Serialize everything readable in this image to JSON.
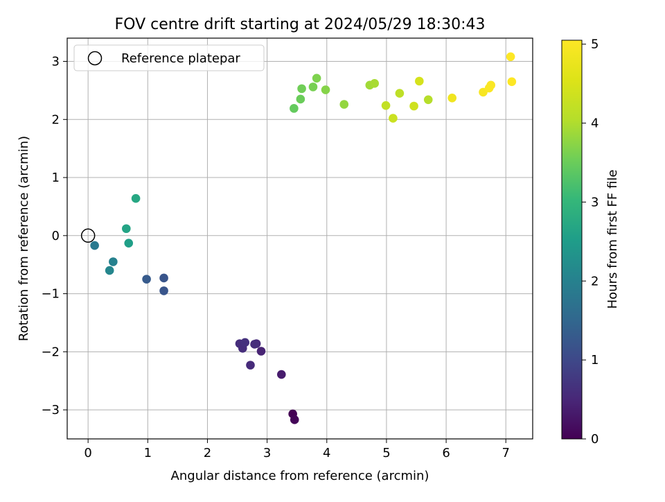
{
  "chart_data": {
    "type": "scatter",
    "title": "FOV centre drift starting at 2024/05/29 18:30:43",
    "xlabel": "Angular distance from reference (arcmin)",
    "ylabel": "Rotation from reference (arcmin)",
    "xlim": [
      -0.35,
      7.45
    ],
    "ylim": [
      -3.5,
      3.4
    ],
    "xticks": [
      0,
      1,
      2,
      3,
      4,
      5,
      6,
      7
    ],
    "xtick_labels": [
      "0",
      "1",
      "2",
      "3",
      "4",
      "5",
      "6",
      "7"
    ],
    "yticks": [
      -3,
      -2,
      -1,
      0,
      1,
      2,
      3
    ],
    "ytick_labels": [
      "−3",
      "−2",
      "−1",
      "0",
      "1",
      "2",
      "3"
    ],
    "grid": true,
    "legend": {
      "position": "top-left",
      "entries": [
        "Reference platepar"
      ]
    },
    "reference_point": {
      "x": 0,
      "y": 0,
      "label": "Reference platepar"
    },
    "colorbar": {
      "label": "Hours from first FF file",
      "range": [
        0,
        5.05
      ],
      "ticks": [
        0,
        1,
        2,
        3,
        4,
        5
      ],
      "tick_labels": [
        "0",
        "1",
        "2",
        "3",
        "4",
        "5"
      ],
      "colormap": "viridis"
    },
    "points": [
      {
        "x": 3.43,
        "y": -3.07,
        "hours": 0.0
      },
      {
        "x": 3.46,
        "y": -3.17,
        "hours": 0.05
      },
      {
        "x": 3.24,
        "y": -2.39,
        "hours": 0.35
      },
      {
        "x": 2.9,
        "y": -1.99,
        "hours": 0.45
      },
      {
        "x": 2.72,
        "y": -2.23,
        "hours": 0.55
      },
      {
        "x": 2.82,
        "y": -1.86,
        "hours": 0.55
      },
      {
        "x": 2.79,
        "y": -1.87,
        "hours": 0.6
      },
      {
        "x": 2.54,
        "y": -1.86,
        "hours": 0.6
      },
      {
        "x": 2.59,
        "y": -1.94,
        "hours": 0.6
      },
      {
        "x": 2.63,
        "y": -1.84,
        "hours": 0.65
      },
      {
        "x": 1.27,
        "y": -0.95,
        "hours": 1.2
      },
      {
        "x": 1.27,
        "y": -0.73,
        "hours": 1.2
      },
      {
        "x": 0.98,
        "y": -0.75,
        "hours": 1.3
      },
      {
        "x": 0.11,
        "y": -0.17,
        "hours": 1.85
      },
      {
        "x": 0.42,
        "y": -0.45,
        "hours": 2.0
      },
      {
        "x": 0.36,
        "y": -0.6,
        "hours": 2.1
      },
      {
        "x": 0.68,
        "y": -0.13,
        "hours": 2.55
      },
      {
        "x": 0.64,
        "y": 0.12,
        "hours": 2.65
      },
      {
        "x": 0.8,
        "y": 0.64,
        "hours": 2.7
      },
      {
        "x": 3.45,
        "y": 2.19,
        "hours": 3.45
      },
      {
        "x": 3.56,
        "y": 2.35,
        "hours": 3.5
      },
      {
        "x": 3.58,
        "y": 2.53,
        "hours": 3.55
      },
      {
        "x": 3.77,
        "y": 2.56,
        "hours": 3.6
      },
      {
        "x": 3.83,
        "y": 2.71,
        "hours": 3.65
      },
      {
        "x": 3.98,
        "y": 2.51,
        "hours": 3.7
      },
      {
        "x": 4.29,
        "y": 2.26,
        "hours": 3.8
      },
      {
        "x": 4.72,
        "y": 2.59,
        "hours": 3.9
      },
      {
        "x": 4.8,
        "y": 2.62,
        "hours": 3.95
      },
      {
        "x": 5.7,
        "y": 2.34,
        "hours": 4.05
      },
      {
        "x": 5.22,
        "y": 2.45,
        "hours": 4.15
      },
      {
        "x": 4.99,
        "y": 2.24,
        "hours": 4.2
      },
      {
        "x": 5.11,
        "y": 2.02,
        "hours": 4.3
      },
      {
        "x": 5.46,
        "y": 2.23,
        "hours": 4.35
      },
      {
        "x": 5.55,
        "y": 2.66,
        "hours": 4.45
      },
      {
        "x": 6.1,
        "y": 2.37,
        "hours": 4.85
      },
      {
        "x": 6.62,
        "y": 2.47,
        "hours": 4.95
      },
      {
        "x": 6.72,
        "y": 2.54,
        "hours": 5.0
      },
      {
        "x": 6.75,
        "y": 2.59,
        "hours": 5.0
      },
      {
        "x": 7.1,
        "y": 2.65,
        "hours": 5.05
      },
      {
        "x": 7.08,
        "y": 3.08,
        "hours": 5.05
      }
    ]
  }
}
